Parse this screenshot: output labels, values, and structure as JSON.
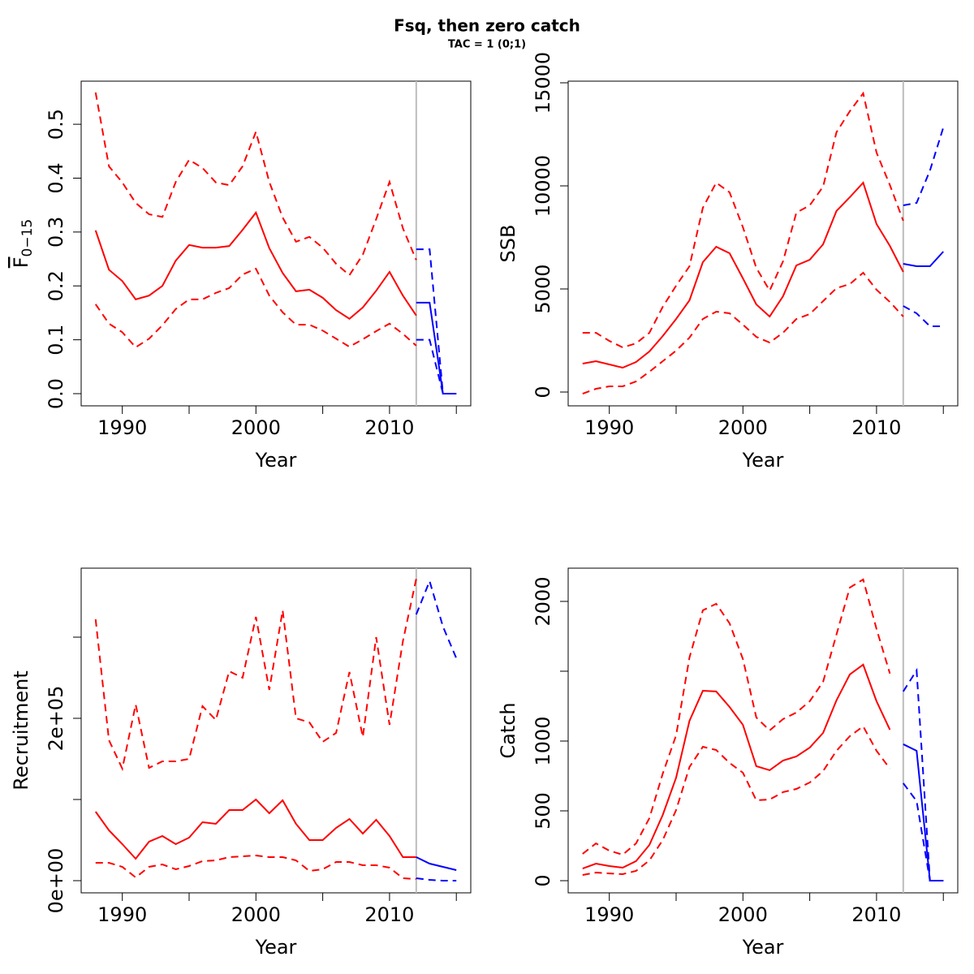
{
  "title": "Fsq, then zero catch",
  "subtitle": "TAC = 1 (0;1)",
  "chart_data": [
    {
      "type": "line",
      "xlabel": "Year",
      "ylabel": "F",
      "ylabel_sub": "0−15",
      "x": [
        1988,
        1989,
        1990,
        1991,
        1992,
        1993,
        1994,
        1995,
        1996,
        1997,
        1998,
        1999,
        2000,
        2001,
        2002,
        2003,
        2004,
        2005,
        2006,
        2007,
        2008,
        2009,
        2010,
        2011,
        2012,
        2013,
        2014,
        2015
      ],
      "xlim": [
        1986.92,
        2016.08
      ],
      "xticks": [
        1990,
        2000,
        2010
      ],
      "xticks_unlabeled": [
        1995,
        2005,
        2015
      ],
      "ylim": [
        -0.0226,
        0.58
      ],
      "yticks": [
        {
          "value": 0,
          "label": "0.0"
        },
        0.1,
        0.2,
        0.3,
        0.4,
        0.5
      ],
      "yticks_unlabeled": [],
      "vline": 2012,
      "vline_color": "#bebebe",
      "series": [
        {
          "color": "#ff0000",
          "dashed": false,
          "values": [
            0.303,
            0.23,
            0.209,
            0.175,
            0.182,
            0.2,
            0.247,
            0.276,
            0.271,
            0.271,
            0.274,
            0.304,
            0.336,
            0.27,
            0.224,
            0.19,
            0.193,
            0.178,
            0.155,
            0.139,
            0.16,
            0.191,
            0.226,
            0.182,
            0.145,
            null,
            null,
            null
          ]
        },
        {
          "color": "#ff0000",
          "dashed": true,
          "values": [
            0.559,
            0.422,
            0.392,
            0.354,
            0.333,
            0.328,
            0.393,
            0.434,
            0.419,
            0.392,
            0.387,
            0.422,
            0.486,
            0.393,
            0.327,
            0.282,
            0.291,
            0.271,
            0.241,
            0.22,
            0.258,
            0.324,
            0.393,
            0.307,
            0.248,
            null,
            null,
            null
          ]
        },
        {
          "color": "#ff0000",
          "dashed": true,
          "values": [
            0.166,
            0.13,
            0.114,
            0.086,
            0.102,
            0.127,
            0.157,
            0.175,
            0.175,
            0.187,
            0.196,
            0.221,
            0.232,
            0.182,
            0.151,
            0.128,
            0.128,
            0.117,
            0.102,
            0.087,
            0.101,
            0.116,
            0.13,
            0.111,
            0.089,
            null,
            null,
            null
          ]
        },
        {
          "color": "#0000ff",
          "dashed": false,
          "values": [
            null,
            null,
            null,
            null,
            null,
            null,
            null,
            null,
            null,
            null,
            null,
            null,
            null,
            null,
            null,
            null,
            null,
            null,
            null,
            null,
            null,
            null,
            null,
            null,
            0.169,
            0.169,
            0,
            0
          ]
        },
        {
          "color": "#0000ff",
          "dashed": true,
          "values": [
            null,
            null,
            null,
            null,
            null,
            null,
            null,
            null,
            null,
            null,
            null,
            null,
            null,
            null,
            null,
            null,
            null,
            null,
            null,
            null,
            null,
            null,
            null,
            null,
            0.268,
            0.268,
            0,
            0
          ]
        },
        {
          "color": "#0000ff",
          "dashed": true,
          "values": [
            null,
            null,
            null,
            null,
            null,
            null,
            null,
            null,
            null,
            null,
            null,
            null,
            null,
            null,
            null,
            null,
            null,
            null,
            null,
            null,
            null,
            null,
            null,
            null,
            0.1,
            0.1,
            0,
            0
          ]
        }
      ]
    },
    {
      "type": "line",
      "xlabel": "Year",
      "ylabel": "SSB",
      "x": [
        1988,
        1989,
        1990,
        1991,
        1992,
        1993,
        1994,
        1995,
        1996,
        1997,
        1998,
        1999,
        2000,
        2001,
        2002,
        2003,
        2004,
        2005,
        2006,
        2007,
        2008,
        2009,
        2010,
        2011,
        2012,
        2013,
        2014,
        2015
      ],
      "xlim": [
        1986.92,
        2016.08
      ],
      "xticks": [
        1990,
        2000,
        2010
      ],
      "xticks_unlabeled": [
        1995,
        2005,
        2015
      ],
      "ylim": [
        -669,
        15079
      ],
      "yticks": [
        0,
        5000,
        10000,
        15000
      ],
      "yticks_unlabeled": [],
      "vline": 2012,
      "vline_color": "#bebebe",
      "series": [
        {
          "color": "#ff0000",
          "dashed": false,
          "values": [
            1378,
            1496,
            1339,
            1181,
            1457,
            1969,
            2717,
            3543,
            4449,
            6299,
            7047,
            6732,
            5512,
            4252,
            3661,
            4646,
            6142,
            6417,
            7165,
            8780,
            9449,
            10157,
            8150,
            7087,
            5827,
            null,
            null,
            null
          ]
        },
        {
          "color": "#ff0000",
          "dashed": true,
          "values": [
            2874,
            2874,
            2480,
            2165,
            2362,
            2874,
            4134,
            5157,
            6102,
            8937,
            10157,
            9685,
            7992,
            6024,
            4921,
            6339,
            8701,
            9055,
            9961,
            12598,
            13622,
            14488,
            11614,
            10039,
            8307,
            null,
            null,
            null
          ]
        },
        {
          "color": "#ff0000",
          "dashed": true,
          "values": [
            -79,
            157,
            276,
            276,
            512,
            984,
            1496,
            2008,
            2638,
            3543,
            3898,
            3819,
            3268,
            2677,
            2402,
            2874,
            3543,
            3780,
            4409,
            5039,
            5236,
            5787,
            4961,
            4370,
            3661,
            null,
            null,
            null
          ]
        },
        {
          "color": "#0000ff",
          "dashed": false,
          "values": [
            null,
            null,
            null,
            null,
            null,
            null,
            null,
            null,
            null,
            null,
            null,
            null,
            null,
            null,
            null,
            null,
            null,
            null,
            null,
            null,
            null,
            null,
            null,
            null,
            6220,
            6102,
            6102,
            6811
          ]
        },
        {
          "color": "#0000ff",
          "dashed": true,
          "values": [
            null,
            null,
            null,
            null,
            null,
            null,
            null,
            null,
            null,
            null,
            null,
            null,
            null,
            null,
            null,
            null,
            null,
            null,
            null,
            null,
            null,
            null,
            null,
            null,
            9055,
            9173,
            10748,
            12834
          ]
        },
        {
          "color": "#0000ff",
          "dashed": true,
          "values": [
            null,
            null,
            null,
            null,
            null,
            null,
            null,
            null,
            null,
            null,
            null,
            null,
            null,
            null,
            null,
            null,
            null,
            null,
            null,
            null,
            null,
            null,
            null,
            null,
            4173,
            3819,
            3189,
            3189
          ]
        }
      ]
    },
    {
      "type": "line",
      "xlabel": "Year",
      "ylabel": "Recruitment",
      "x": [
        1988,
        1989,
        1990,
        1991,
        1992,
        1993,
        1994,
        1995,
        1996,
        1997,
        1998,
        1999,
        2000,
        2001,
        2002,
        2003,
        2004,
        2005,
        2006,
        2007,
        2008,
        2009,
        2010,
        2011,
        2012,
        2013,
        2014,
        2015
      ],
      "xlim": [
        1986.92,
        2016.08
      ],
      "xticks": [
        1990,
        2000,
        2010
      ],
      "xticks_unlabeled": [
        1995,
        2005,
        2015
      ],
      "ylim": [
        -15000,
        385000
      ],
      "yticks": [
        {
          "value": 0,
          "label": "0e+00"
        },
        {
          "value": 200000,
          "label": "2e+05"
        }
      ],
      "yticks_unlabeled": [
        100000,
        300000
      ],
      "vline": 2012,
      "vline_color": "#bebebe",
      "series": [
        {
          "color": "#ff0000",
          "dashed": false,
          "values": [
            85000,
            62000,
            45000,
            27000,
            48000,
            55000,
            45000,
            53000,
            72000,
            70000,
            87000,
            87000,
            100000,
            83000,
            99000,
            70000,
            50000,
            50000,
            65000,
            76000,
            58000,
            75000,
            55000,
            29000,
            29000,
            null,
            null,
            null
          ]
        },
        {
          "color": "#ff0000",
          "dashed": true,
          "values": [
            322000,
            173000,
            138000,
            217000,
            139000,
            147000,
            147000,
            150000,
            215000,
            198000,
            258000,
            250000,
            325000,
            235000,
            333000,
            200000,
            195000,
            171000,
            182000,
            257000,
            177000,
            300000,
            192000,
            295000,
            372000,
            null,
            null,
            null
          ]
        },
        {
          "color": "#ff0000",
          "dashed": true,
          "values": [
            22000,
            22000,
            17000,
            4000,
            17000,
            20000,
            14000,
            18000,
            24000,
            25000,
            29000,
            30000,
            31000,
            29000,
            29000,
            25000,
            12000,
            14000,
            23000,
            23000,
            19000,
            19000,
            16000,
            3000,
            2000,
            null,
            null,
            null
          ]
        },
        {
          "color": "#0000ff",
          "dashed": false,
          "values": [
            null,
            null,
            null,
            null,
            null,
            null,
            null,
            null,
            null,
            null,
            null,
            null,
            null,
            null,
            null,
            null,
            null,
            null,
            null,
            null,
            null,
            null,
            null,
            null,
            29000,
            21000,
            17000,
            13000
          ]
        },
        {
          "color": "#0000ff",
          "dashed": true,
          "values": [
            null,
            null,
            null,
            null,
            null,
            null,
            null,
            null,
            null,
            null,
            null,
            null,
            null,
            null,
            null,
            null,
            null,
            null,
            null,
            null,
            null,
            null,
            null,
            null,
            328000,
            369000,
            313000,
            274000
          ]
        },
        {
          "color": "#0000ff",
          "dashed": true,
          "values": [
            null,
            null,
            null,
            null,
            null,
            null,
            null,
            null,
            null,
            null,
            null,
            null,
            null,
            null,
            null,
            null,
            null,
            null,
            null,
            null,
            null,
            null,
            null,
            null,
            3000,
            1000,
            0,
            0
          ]
        }
      ]
    },
    {
      "type": "line",
      "xlabel": "Year",
      "ylabel": "Catch",
      "x": [
        1988,
        1989,
        1990,
        1991,
        1992,
        1993,
        1994,
        1995,
        1996,
        1997,
        1998,
        1999,
        2000,
        2001,
        2002,
        2003,
        2004,
        2005,
        2006,
        2007,
        2008,
        2009,
        2010,
        2011,
        2012,
        2013,
        2014,
        2015
      ],
      "xlim": [
        1986.92,
        2016.08
      ],
      "xticks": [
        1990,
        2000,
        2010
      ],
      "xticks_unlabeled": [
        1995,
        2005,
        2015
      ],
      "ylim": [
        -87,
        2238
      ],
      "yticks": [
        0,
        500,
        1000,
        2000
      ],
      "yticks_unlabeled": [
        1500
      ],
      "vline": 2012,
      "vline_color": "#bebebe",
      "series": [
        {
          "color": "#ff0000",
          "dashed": false,
          "values": [
            87,
            122,
            105,
            93,
            140,
            256,
            471,
            738,
            1145,
            1360,
            1355,
            1244,
            1116,
            820,
            791,
            860,
            890,
            953,
            1058,
            1291,
            1477,
            1547,
            1285,
            1081,
            null,
            null,
            null,
            null
          ]
        },
        {
          "color": "#ff0000",
          "dashed": true,
          "values": [
            192,
            267,
            215,
            186,
            267,
            448,
            767,
            1041,
            1599,
            1936,
            1983,
            1843,
            1587,
            1169,
            1076,
            1157,
            1204,
            1285,
            1424,
            1762,
            2099,
            2157,
            1802,
            1483,
            null,
            null,
            null,
            null
          ]
        },
        {
          "color": "#ff0000",
          "dashed": true,
          "values": [
            41,
            58,
            52,
            47,
            70,
            145,
            291,
            506,
            814,
            959,
            936,
            843,
            773,
            576,
            581,
            634,
            657,
            703,
            785,
            930,
            1035,
            1105,
            930,
            802,
            null,
            null,
            null,
            null
          ]
        },
        {
          "color": "#0000ff",
          "dashed": false,
          "values": [
            null,
            null,
            null,
            null,
            null,
            null,
            null,
            null,
            null,
            null,
            null,
            null,
            null,
            null,
            null,
            null,
            null,
            null,
            null,
            null,
            null,
            null,
            null,
            null,
            977,
            930,
            0,
            0
          ]
        },
        {
          "color": "#0000ff",
          "dashed": true,
          "values": [
            null,
            null,
            null,
            null,
            null,
            null,
            null,
            null,
            null,
            null,
            null,
            null,
            null,
            null,
            null,
            null,
            null,
            null,
            null,
            null,
            null,
            null,
            null,
            null,
            1355,
            1506,
            0,
            0
          ]
        },
        {
          "color": "#0000ff",
          "dashed": true,
          "values": [
            null,
            null,
            null,
            null,
            null,
            null,
            null,
            null,
            null,
            null,
            null,
            null,
            null,
            null,
            null,
            null,
            null,
            null,
            null,
            null,
            null,
            null,
            null,
            null,
            698,
            570,
            0,
            0
          ]
        }
      ]
    }
  ]
}
